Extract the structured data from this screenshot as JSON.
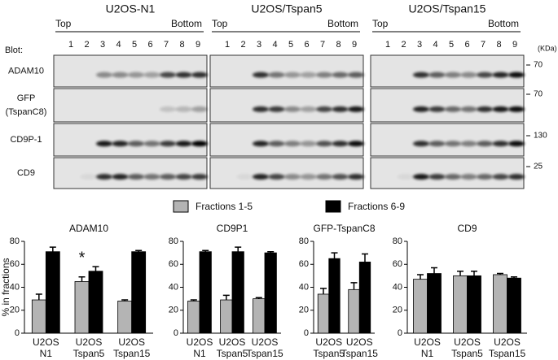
{
  "blot": {
    "columns": [
      {
        "title": "U2OS-N1",
        "top": "Top",
        "bottom": "Bottom"
      },
      {
        "title": "U2OS/Tspan5",
        "top": "Top",
        "bottom": "Bottom"
      },
      {
        "title": "U2OS/Tspan15",
        "top": "Top",
        "bottom": "Bottom"
      }
    ],
    "lanes": [
      "1",
      "2",
      "3",
      "4",
      "5",
      "6",
      "7",
      "8",
      "9"
    ],
    "blot_label": "Blot:",
    "rows": [
      [
        "ADAM10"
      ],
      [
        "GFP",
        "(TspanC8)"
      ],
      [
        "CD9P-1"
      ],
      [
        "CD9"
      ]
    ],
    "kda_label": "(KDa)",
    "markers": [
      "70",
      "70",
      "130",
      "25"
    ]
  },
  "legend": [
    "Fractions 1-5",
    "Fractions 6-9"
  ],
  "chart_data": [
    {
      "type": "bar",
      "title": "ADAM10",
      "ylabel": "% in fractions",
      "categories": [
        [
          "U2OS",
          "N1"
        ],
        [
          "U2OS",
          "Tspan5"
        ],
        [
          "U2OS",
          "Tspan15"
        ]
      ],
      "series": [
        {
          "name": "Fractions 1-5",
          "color": "#b4b4b4",
          "values": [
            29,
            45,
            28
          ],
          "errors": [
            5,
            4,
            1
          ]
        },
        {
          "name": "Fractions 6-9",
          "color": "#000000",
          "values": [
            71,
            54,
            71
          ],
          "errors": [
            4,
            4,
            1
          ]
        }
      ],
      "annotation": "*",
      "ylim": [
        0,
        80
      ],
      "yticks": [
        0,
        20,
        40,
        60,
        80
      ]
    },
    {
      "type": "bar",
      "title": "CD9P1",
      "categories": [
        [
          "U2OS",
          "N1"
        ],
        [
          "U2OS",
          "Tspan5"
        ],
        [
          "U2OS",
          "Tspan15"
        ]
      ],
      "series": [
        {
          "color": "#b4b4b4",
          "values": [
            28,
            29,
            30
          ],
          "errors": [
            1,
            4,
            1
          ]
        },
        {
          "color": "#000000",
          "values": [
            71,
            71,
            70
          ],
          "errors": [
            1,
            4,
            1
          ]
        }
      ],
      "ylim": [
        0,
        80
      ],
      "yticks": [
        0,
        20,
        40,
        60,
        80
      ]
    },
    {
      "type": "bar",
      "title": "GFP-TspanC8",
      "categories": [
        [
          "U2OS",
          "Tspan5"
        ],
        [
          "U2OS",
          "Tspan15"
        ]
      ],
      "series": [
        {
          "color": "#b4b4b4",
          "values": [
            34,
            38
          ],
          "errors": [
            5,
            6
          ]
        },
        {
          "color": "#000000",
          "values": [
            65,
            62
          ],
          "errors": [
            5,
            7
          ]
        }
      ],
      "ylim": [
        0,
        80
      ],
      "yticks": [
        0,
        20,
        40,
        60,
        80
      ]
    },
    {
      "type": "bar",
      "title": "CD9",
      "categories": [
        [
          "U2OS",
          "N1"
        ],
        [
          "U2OS",
          "Tspan5"
        ],
        [
          "U2OS",
          "Tspan15"
        ]
      ],
      "series": [
        {
          "color": "#b4b4b4",
          "values": [
            47,
            50,
            51
          ],
          "errors": [
            4,
            4,
            1
          ]
        },
        {
          "color": "#000000",
          "values": [
            52,
            50,
            48
          ],
          "errors": [
            5,
            4,
            1
          ]
        }
      ],
      "ylim": [
        0,
        80
      ],
      "yticks": [
        0,
        20,
        40,
        60,
        80
      ]
    }
  ]
}
